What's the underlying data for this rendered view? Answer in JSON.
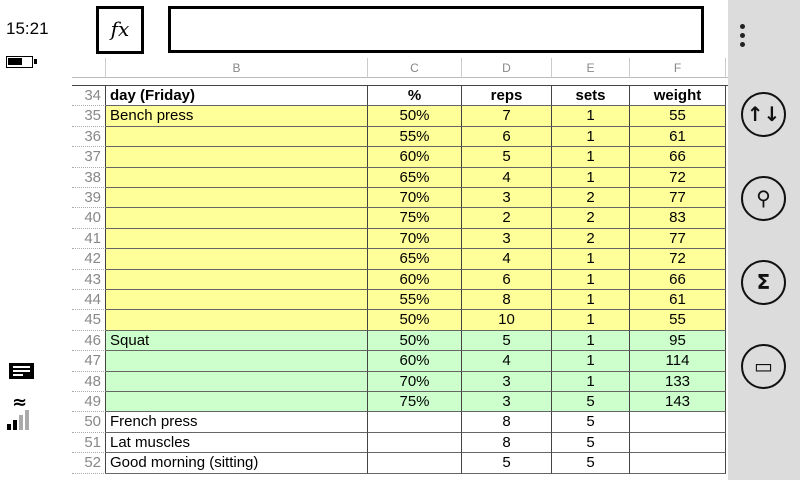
{
  "status": {
    "time": "15:21",
    "battery_level": 0.6,
    "signal_bars": 2,
    "signal_total": 4
  },
  "toolbar": {
    "fx_label": "fx",
    "formula_value": ""
  },
  "columns": [
    "B",
    "C",
    "D",
    "E",
    "F"
  ],
  "rows": [
    {
      "n": "34",
      "b": "day (Friday)",
      "c": "%",
      "d": "reps",
      "e": "sets",
      "f": "weight",
      "bold": true,
      "fill": "#ffffff"
    },
    {
      "n": "35",
      "b": "Bench press",
      "c": "50%",
      "d": "7",
      "e": "1",
      "f": "55",
      "fill": "#ffff99"
    },
    {
      "n": "36",
      "b": "",
      "c": "55%",
      "d": "6",
      "e": "1",
      "f": "61",
      "fill": "#ffff99"
    },
    {
      "n": "37",
      "b": "",
      "c": "60%",
      "d": "5",
      "e": "1",
      "f": "66",
      "fill": "#ffff99"
    },
    {
      "n": "38",
      "b": "",
      "c": "65%",
      "d": "4",
      "e": "1",
      "f": "72",
      "fill": "#ffff99"
    },
    {
      "n": "39",
      "b": "",
      "c": "70%",
      "d": "3",
      "e": "2",
      "f": "77",
      "fill": "#ffff99"
    },
    {
      "n": "40",
      "b": "",
      "c": "75%",
      "d": "2",
      "e": "2",
      "f": "83",
      "fill": "#ffff99"
    },
    {
      "n": "41",
      "b": "",
      "c": "70%",
      "d": "3",
      "e": "2",
      "f": "77",
      "fill": "#ffff99"
    },
    {
      "n": "42",
      "b": "",
      "c": "65%",
      "d": "4",
      "e": "1",
      "f": "72",
      "fill": "#ffff99"
    },
    {
      "n": "43",
      "b": "",
      "c": "60%",
      "d": "6",
      "e": "1",
      "f": "66",
      "fill": "#ffff99"
    },
    {
      "n": "44",
      "b": "",
      "c": "55%",
      "d": "8",
      "e": "1",
      "f": "61",
      "fill": "#ffff99"
    },
    {
      "n": "45",
      "b": "",
      "c": "50%",
      "d": "10",
      "e": "1",
      "f": "55",
      "fill": "#ffff99"
    },
    {
      "n": "46",
      "b": "Squat",
      "c": "50%",
      "d": "5",
      "e": "1",
      "f": "95",
      "fill": "#ccffcc"
    },
    {
      "n": "47",
      "b": "",
      "c": "60%",
      "d": "4",
      "e": "1",
      "f": "114",
      "fill": "#ccffcc"
    },
    {
      "n": "48",
      "b": "",
      "c": "70%",
      "d": "3",
      "e": "1",
      "f": "133",
      "fill": "#ccffcc"
    },
    {
      "n": "49",
      "b": "",
      "c": "75%",
      "d": "3",
      "e": "5",
      "f": "143",
      "fill": "#ccffcc"
    },
    {
      "n": "50",
      "b": "French press",
      "c": "",
      "d": "8",
      "e": "5",
      "f": "",
      "fill": "#ffffff"
    },
    {
      "n": "51",
      "b": "Lat muscles",
      "c": "",
      "d": "8",
      "e": "5",
      "f": "",
      "fill": "#ffffff"
    },
    {
      "n": "52",
      "b": "Good morning (sitting)",
      "c": "",
      "d": "5",
      "e": "5",
      "f": "",
      "fill": "#ffffff"
    }
  ],
  "panel": {
    "more_icon": "more-icon",
    "buttons": [
      {
        "icon": "sort-icon",
        "glyph": "↑↓"
      },
      {
        "icon": "search-icon",
        "glyph": "⚲"
      },
      {
        "icon": "sum-icon",
        "glyph": "Σ"
      },
      {
        "icon": "comment-icon",
        "glyph": "▭"
      }
    ]
  }
}
